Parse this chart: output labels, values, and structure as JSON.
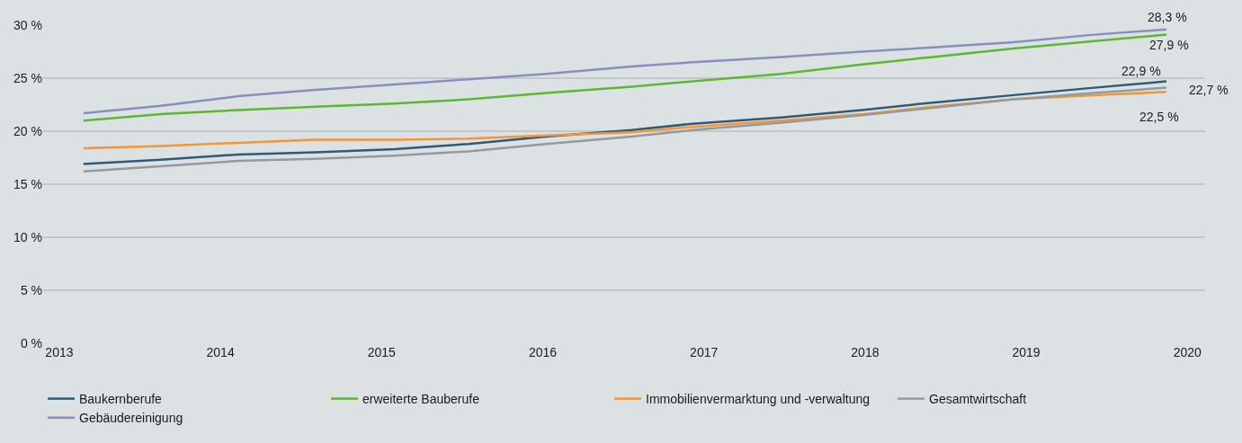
{
  "chart_data": {
    "type": "line",
    "x": [
      2013.15,
      2013.63,
      2014.11,
      2014.59,
      2015.08,
      2015.54,
      2016.02,
      2016.55,
      2016.93,
      2017.48,
      2017.98,
      2018.42,
      2018.92,
      2019.42,
      2019.87
    ],
    "series": [
      {
        "name": "Baukernberufe",
        "color": "#2f5a78",
        "values": [
          16.9,
          17.3,
          17.8,
          18.0,
          18.3,
          18.8,
          19.5,
          20.1,
          20.7,
          21.3,
          22.0,
          22.7,
          23.4,
          24.1,
          24.7
        ]
      },
      {
        "name": "erweiterte Bauberufe",
        "color": "#5cb82e",
        "values": [
          21.0,
          21.6,
          22.0,
          22.3,
          22.6,
          23.0,
          23.6,
          24.2,
          24.7,
          25.4,
          26.3,
          27.0,
          27.8,
          28.5,
          29.1
        ]
      },
      {
        "name": "Immobilienvermarktung und -verwaltung",
        "color": "#f39538",
        "values": [
          18.4,
          18.6,
          18.9,
          19.2,
          19.2,
          19.3,
          19.6,
          19.9,
          20.4,
          21.0,
          21.6,
          22.3,
          23.0,
          23.4,
          23.7
        ]
      },
      {
        "name": "Gesamtwirtschaft",
        "color": "#959a9c",
        "values": [
          16.2,
          16.7,
          17.2,
          17.4,
          17.7,
          18.1,
          18.8,
          19.5,
          20.1,
          20.8,
          21.5,
          22.2,
          23.0,
          23.6,
          24.1
        ]
      },
      {
        "name": "Gebäudereinigung",
        "color": "#8690c0",
        "values": [
          21.7,
          22.4,
          23.3,
          23.9,
          24.4,
          24.9,
          25.4,
          26.1,
          26.5,
          27.0,
          27.5,
          27.9,
          28.4,
          29.1,
          29.6
        ]
      }
    ],
    "xlim": [
      2012.9,
      2020.11
    ],
    "xticks": [
      2013,
      2014,
      2015,
      2016,
      2017,
      2018,
      2019,
      2020
    ],
    "ylim": [
      0,
      30
    ],
    "yticks": [
      {
        "value": 0,
        "label": "0 %"
      },
      {
        "value": 5,
        "label": "5 %"
      },
      {
        "value": 10,
        "label": "10 %"
      },
      {
        "value": 15,
        "label": "15 %"
      },
      {
        "value": 20,
        "label": "20 %"
      },
      {
        "value": 25,
        "label": "25 %"
      },
      {
        "value": 30,
        "label": "30 %"
      }
    ],
    "grid": "y",
    "legend": "bottom",
    "marker": "none",
    "line_style": "solid",
    "annotations": [
      "28,3 %",
      "27,9 %",
      "22,9 %",
      "22,7 %",
      "22,5 %"
    ]
  }
}
